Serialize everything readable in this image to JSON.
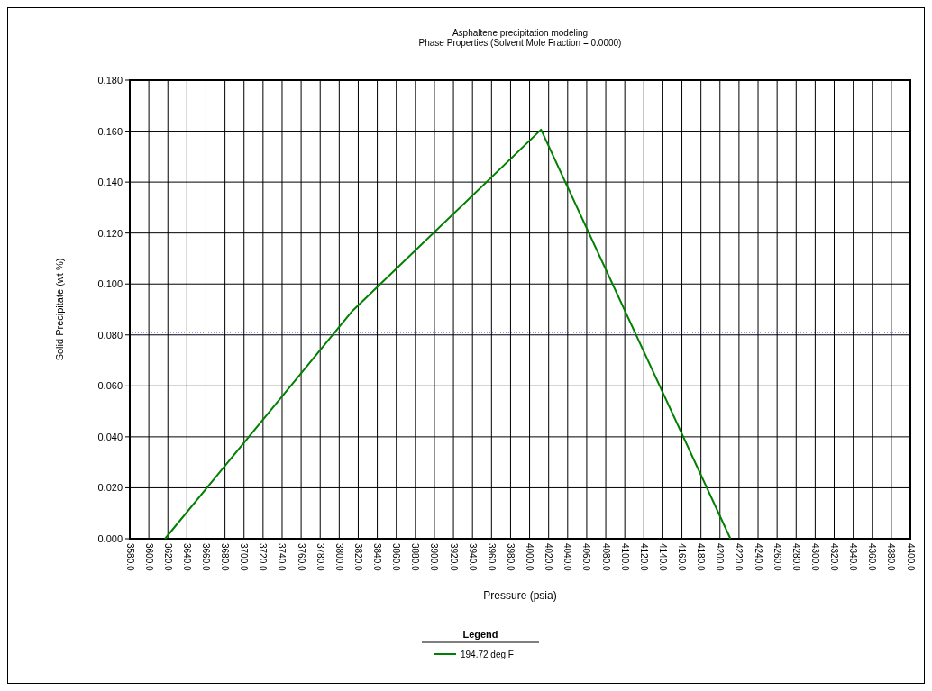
{
  "chart_data": {
    "type": "line",
    "title": "Asphaltene precipitation modeling",
    "subtitle": "Phase Properties (Solvent Mole Fraction = 0.0000)",
    "xlabel": "Pressure (psia)",
    "ylabel": "Solid Precipitate (wt %)",
    "legend_title": "Legend",
    "legend": "bottom",
    "grid": true,
    "marker": "none",
    "line_style": "solid",
    "series": [
      {
        "name": "194.72 deg F",
        "color": "#008000",
        "x": [
          3617,
          3814,
          4012,
          4211
        ],
        "values": [
          0,
          0.0895,
          0.1606,
          0
        ]
      }
    ],
    "xlim": [
      3580,
      4400
    ],
    "xticks": [
      {
        "value": 3580,
        "label": "3580.0"
      },
      {
        "value": 3600,
        "label": "3600.0"
      },
      {
        "value": 3620,
        "label": "3620.0"
      },
      {
        "value": 3640,
        "label": "3640.0"
      },
      {
        "value": 3660,
        "label": "3660.0"
      },
      {
        "value": 3680,
        "label": "3680.0"
      },
      {
        "value": 3700,
        "label": "3700.0"
      },
      {
        "value": 3720,
        "label": "3720.0"
      },
      {
        "value": 3740,
        "label": "3740.0"
      },
      {
        "value": 3760,
        "label": "3760.0"
      },
      {
        "value": 3780,
        "label": "3780.0"
      },
      {
        "value": 3800,
        "label": "3800.0"
      },
      {
        "value": 3820,
        "label": "3820.0"
      },
      {
        "value": 3840,
        "label": "3840.0"
      },
      {
        "value": 3860,
        "label": "3860.0"
      },
      {
        "value": 3880,
        "label": "3880.0"
      },
      {
        "value": 3900,
        "label": "3900.0"
      },
      {
        "value": 3920,
        "label": "3920.0"
      },
      {
        "value": 3940,
        "label": "3940.0"
      },
      {
        "value": 3960,
        "label": "3960.0"
      },
      {
        "value": 3980,
        "label": "3980.0"
      },
      {
        "value": 4000,
        "label": "4000.0"
      },
      {
        "value": 4020,
        "label": "4020.0"
      },
      {
        "value": 4040,
        "label": "4040.0"
      },
      {
        "value": 4060,
        "label": "4060.0"
      },
      {
        "value": 4080,
        "label": "4080.0"
      },
      {
        "value": 4100,
        "label": "4100.0"
      },
      {
        "value": 4120,
        "label": "4120.0"
      },
      {
        "value": 4140,
        "label": "4140.0"
      },
      {
        "value": 4160,
        "label": "4160.0"
      },
      {
        "value": 4180,
        "label": "4180.0"
      },
      {
        "value": 4200,
        "label": "4200.0"
      },
      {
        "value": 4220,
        "label": "4220.0"
      },
      {
        "value": 4240,
        "label": "4240.0"
      },
      {
        "value": 4260,
        "label": "4260.0"
      },
      {
        "value": 4280,
        "label": "4280.0"
      },
      {
        "value": 4300,
        "label": "4300.0"
      },
      {
        "value": 4320,
        "label": "4320.0"
      },
      {
        "value": 4340,
        "label": "4340.0"
      },
      {
        "value": 4360,
        "label": "4360.0"
      },
      {
        "value": 4380,
        "label": "4380.0"
      },
      {
        "value": 4400,
        "label": "4400.0"
      }
    ],
    "ylim": [
      0,
      0.18
    ],
    "yticks": [
      {
        "value": 0,
        "label": "0.000"
      },
      {
        "value": 0.02,
        "label": "0.020"
      },
      {
        "value": 0.04,
        "label": "0.040"
      },
      {
        "value": 0.06,
        "label": "0.060"
      },
      {
        "value": 0.08,
        "label": "0.080"
      },
      {
        "value": 0.1,
        "label": "0.100"
      },
      {
        "value": 0.12,
        "label": "0.120"
      },
      {
        "value": 0.14,
        "label": "0.140"
      },
      {
        "value": 0.16,
        "label": "0.160"
      },
      {
        "value": 0.18,
        "label": "0.180"
      }
    ],
    "ref_lines": [
      {
        "axis": "y",
        "value": 0.081,
        "color": "#0000ff",
        "line_style": "dotted"
      }
    ]
  }
}
